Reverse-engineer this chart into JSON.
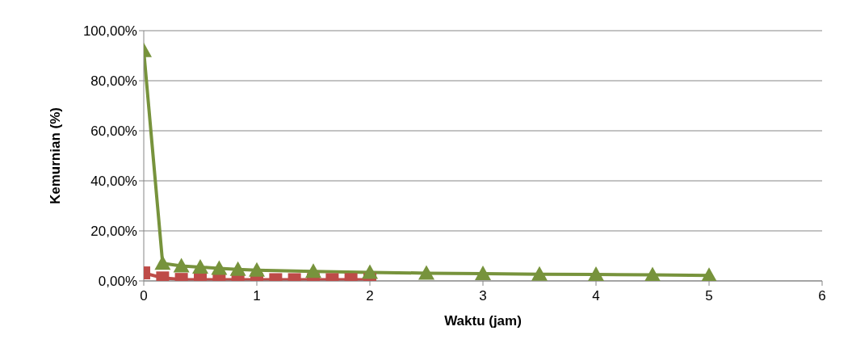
{
  "chart_data": {
    "type": "line",
    "xlabel": "Waktu (jam)",
    "ylabel": "Kemurnian (%)",
    "xlim": [
      0,
      6
    ],
    "xticks": [
      0,
      1,
      2,
      3,
      4,
      5,
      6
    ],
    "ylim": [
      0,
      1
    ],
    "yticks": [
      {
        "value": 0,
        "label": "0,00%"
      },
      {
        "value": 0.2,
        "label": "20,00%"
      },
      {
        "value": 0.4,
        "label": "40,00%"
      },
      {
        "value": 0.6,
        "label": "60,00%"
      },
      {
        "value": 0.8,
        "label": "80,00%"
      },
      {
        "value": 1,
        "label": "100,00%"
      }
    ],
    "grid": "y",
    "series": [
      {
        "color": "#be4b48",
        "marker": "square",
        "x": [
          0,
          0.167,
          0.333,
          0.5,
          0.667,
          0.833,
          1,
          1.167,
          1.333,
          1.5,
          1.667,
          1.833,
          2
        ],
        "values": [
          0.032,
          0.012,
          0.006,
          0.005,
          0.005,
          0.005,
          0.005,
          0.005,
          0.005,
          0.005,
          0.005,
          0.005,
          0.005
        ]
      },
      {
        "color": "#77933c",
        "marker": "triangle",
        "x": [
          0,
          0.167,
          0.333,
          0.5,
          0.667,
          0.833,
          1,
          1.5,
          2,
          2.5,
          3,
          3.5,
          4,
          4.5,
          5
        ],
        "values": [
          0.92,
          0.07,
          0.06,
          0.055,
          0.05,
          0.046,
          0.043,
          0.038,
          0.034,
          0.031,
          0.029,
          0.027,
          0.026,
          0.024,
          0.022
        ]
      }
    ]
  }
}
